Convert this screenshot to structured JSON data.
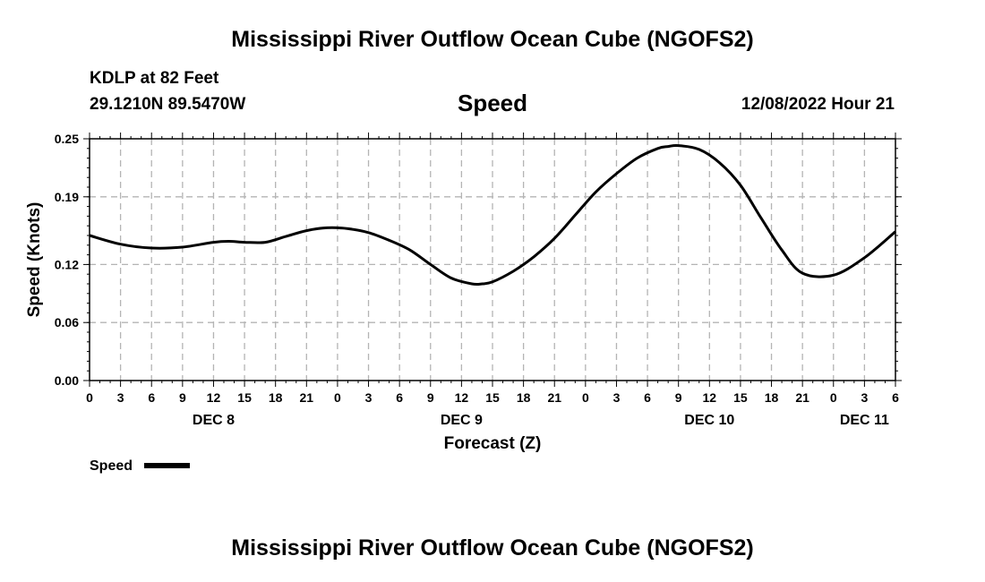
{
  "header": {
    "title": "Mississippi River Outflow Ocean Cube (NGOFS2)",
    "station": "KDLP at 82 Feet",
    "coordinates": "29.1210N  89.5470W",
    "parameter": "Speed",
    "datetime": "12/08/2022 Hour 21"
  },
  "footer": {
    "title": "Mississippi River Outflow Ocean Cube (NGOFS2)"
  },
  "colors": {
    "line": "#000000",
    "grid": "#b4b4b4",
    "background": "#ffffff"
  },
  "chart_data": {
    "type": "line",
    "title": "Speed",
    "xlabel": "Forecast (Z)",
    "ylabel": "Speed (Knots)",
    "xlim": [
      0,
      78
    ],
    "ylim": [
      0,
      0.25
    ],
    "yticks": [
      0.0,
      0.06,
      0.12,
      0.19,
      0.25
    ],
    "ytick_labels": [
      "0.00",
      "0.06",
      "0.12",
      "0.19",
      "0.25"
    ],
    "x_tick_hours": [
      0,
      3,
      6,
      9,
      12,
      15,
      18,
      21,
      24,
      27,
      30,
      33,
      36,
      39,
      42,
      45,
      48,
      51,
      54,
      57,
      60,
      63,
      66,
      69,
      72,
      75,
      78
    ],
    "x_tick_labels": [
      "0",
      "3",
      "6",
      "9",
      "12",
      "15",
      "18",
      "21",
      "0",
      "3",
      "6",
      "9",
      "12",
      "15",
      "18",
      "21",
      "0",
      "3",
      "6",
      "9",
      "12",
      "15",
      "18",
      "21",
      "0",
      "3",
      "6"
    ],
    "day_labels": [
      {
        "hour": 12,
        "label": "DEC 8"
      },
      {
        "hour": 36,
        "label": "DEC 9"
      },
      {
        "hour": 60,
        "label": "DEC 10"
      },
      {
        "hour": 75,
        "label": "DEC 11"
      }
    ],
    "grid": true,
    "legend": {
      "label": "Speed",
      "position": "bottom-left"
    },
    "series": [
      {
        "name": "Speed",
        "x": [
          0,
          3,
          6,
          9,
          12,
          13.5,
          15,
          17,
          19,
          21,
          23,
          25,
          27,
          29,
          31,
          33,
          35,
          37,
          38,
          39,
          41,
          43,
          45,
          47,
          49,
          51,
          53,
          55,
          56,
          57,
          59,
          61,
          63,
          65,
          67,
          69,
          72,
          75,
          78
        ],
        "values": [
          0.15,
          0.141,
          0.137,
          0.138,
          0.143,
          0.144,
          0.143,
          0.143,
          0.149,
          0.155,
          0.158,
          0.157,
          0.153,
          0.145,
          0.135,
          0.12,
          0.106,
          0.1,
          0.1,
          0.102,
          0.113,
          0.128,
          0.147,
          0.171,
          0.195,
          0.214,
          0.23,
          0.24,
          0.242,
          0.243,
          0.239,
          0.225,
          0.202,
          0.168,
          0.135,
          0.111,
          0.109,
          0.127,
          0.154
        ]
      }
    ]
  }
}
